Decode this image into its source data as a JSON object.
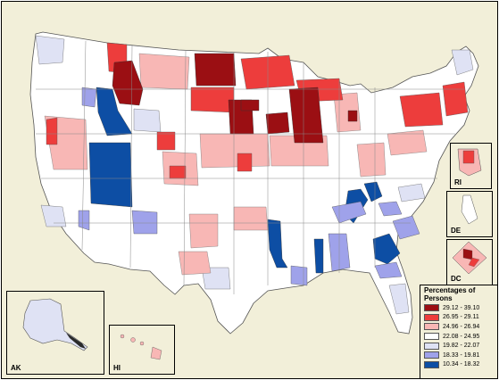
{
  "colors": {
    "background": "#f2efd9",
    "border": "#000000",
    "class_1": "#9b0f13",
    "class_2": "#ed3d3c",
    "class_3": "#f8b7b5",
    "class_4": "#ffffff",
    "class_5": "#dfe2f4",
    "class_6": "#9fa2ea",
    "class_7": "#0d4ea4"
  },
  "insets": [
    {
      "key": "ak",
      "label": "AK"
    },
    {
      "key": "hi",
      "label": "HI"
    },
    {
      "key": "ri",
      "label": "RI"
    },
    {
      "key": "de",
      "label": "DE"
    },
    {
      "key": "dc",
      "label": "DC"
    }
  ],
  "legend": {
    "title_line1": "Percentages of",
    "title_line2": "Persons",
    "classes": [
      {
        "range": "29.12 - 39.10",
        "color": "#9b0f13"
      },
      {
        "range": "26.95 - 29.11",
        "color": "#ed3d3c"
      },
      {
        "range": "24.96 - 26.94",
        "color": "#f8b7b5"
      },
      {
        "range": "22.08 - 24.95",
        "color": "#ffffff"
      },
      {
        "range": "19.82 - 22.07",
        "color": "#dfe2f4"
      },
      {
        "range": "18.33 - 19.81",
        "color": "#9fa2ea"
      },
      {
        "range": "10.34 - 18.32",
        "color": "#0d4ea4"
      }
    ]
  }
}
